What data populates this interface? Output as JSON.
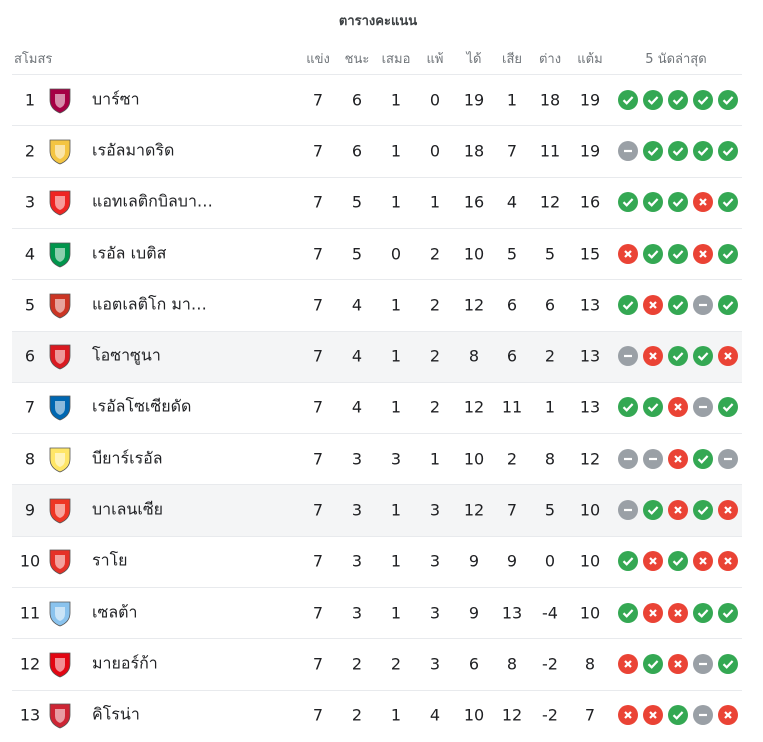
{
  "title": "ตารางคะแนน",
  "table": {
    "headers": [
      "สโมสร",
      "แข่ง",
      "ชนะ",
      "เสมอ",
      "แพ้",
      "ได้",
      "เสีย",
      "ต่าง",
      "แต้ม",
      "5 นัดล่าสุด"
    ],
    "rows": [
      {
        "pos": 1,
        "team": "บาร์ซา",
        "stats": [
          7,
          6,
          1,
          0,
          19,
          1,
          18,
          19
        ],
        "form": [
          "W",
          "W",
          "W",
          "W",
          "W"
        ],
        "highlight": false
      },
      {
        "pos": 2,
        "team": "เรอัลมาดริด",
        "stats": [
          7,
          6,
          1,
          0,
          18,
          7,
          11,
          19
        ],
        "form": [
          "D",
          "W",
          "W",
          "W",
          "W"
        ],
        "highlight": false
      },
      {
        "pos": 3,
        "team": "แอทเลติกบิลบา…",
        "stats": [
          7,
          5,
          1,
          1,
          16,
          4,
          12,
          16
        ],
        "form": [
          "W",
          "W",
          "W",
          "L",
          "W"
        ],
        "highlight": false
      },
      {
        "pos": 4,
        "team": "เรอัล เบติส",
        "stats": [
          7,
          5,
          0,
          2,
          10,
          5,
          5,
          15
        ],
        "form": [
          "L",
          "W",
          "W",
          "L",
          "W"
        ],
        "highlight": false
      },
      {
        "pos": 5,
        "team": "แอตเลติโก มา…",
        "stats": [
          7,
          4,
          1,
          2,
          12,
          6,
          6,
          13
        ],
        "form": [
          "W",
          "L",
          "W",
          "D",
          "W"
        ],
        "highlight": false
      },
      {
        "pos": 6,
        "team": "โอซาซูนา",
        "stats": [
          7,
          4,
          1,
          2,
          8,
          6,
          2,
          13
        ],
        "form": [
          "D",
          "L",
          "W",
          "W",
          "L"
        ],
        "highlight": true
      },
      {
        "pos": 7,
        "team": "เรอัลโซเซียดัด",
        "stats": [
          7,
          4,
          1,
          2,
          12,
          11,
          1,
          13
        ],
        "form": [
          "W",
          "W",
          "L",
          "D",
          "W"
        ],
        "highlight": false
      },
      {
        "pos": 8,
        "team": "บียาร์เรอัล",
        "stats": [
          7,
          3,
          3,
          1,
          10,
          2,
          8,
          12
        ],
        "form": [
          "D",
          "D",
          "L",
          "W",
          "D"
        ],
        "highlight": false
      },
      {
        "pos": 9,
        "team": "บาเลนเซีย",
        "stats": [
          7,
          3,
          1,
          3,
          12,
          7,
          5,
          10
        ],
        "form": [
          "D",
          "W",
          "L",
          "W",
          "L"
        ],
        "highlight": true
      },
      {
        "pos": 10,
        "team": "ราโย",
        "stats": [
          7,
          3,
          1,
          3,
          9,
          9,
          0,
          10
        ],
        "form": [
          "W",
          "L",
          "W",
          "L",
          "L"
        ],
        "highlight": false
      },
      {
        "pos": 11,
        "team": "เซลต้า",
        "stats": [
          7,
          3,
          1,
          3,
          9,
          13,
          -4,
          10
        ],
        "form": [
          "W",
          "L",
          "L",
          "W",
          "W"
        ],
        "highlight": false
      },
      {
        "pos": 12,
        "team": "มายอร์ก้า",
        "stats": [
          7,
          2,
          2,
          3,
          6,
          8,
          -2,
          8
        ],
        "form": [
          "L",
          "W",
          "L",
          "D",
          "W"
        ],
        "highlight": false
      },
      {
        "pos": 13,
        "team": "คิโรน่า",
        "stats": [
          7,
          2,
          1,
          4,
          10,
          12,
          -2,
          7
        ],
        "form": [
          "L",
          "L",
          "W",
          "D",
          "L"
        ],
        "highlight": false
      }
    ]
  }
}
